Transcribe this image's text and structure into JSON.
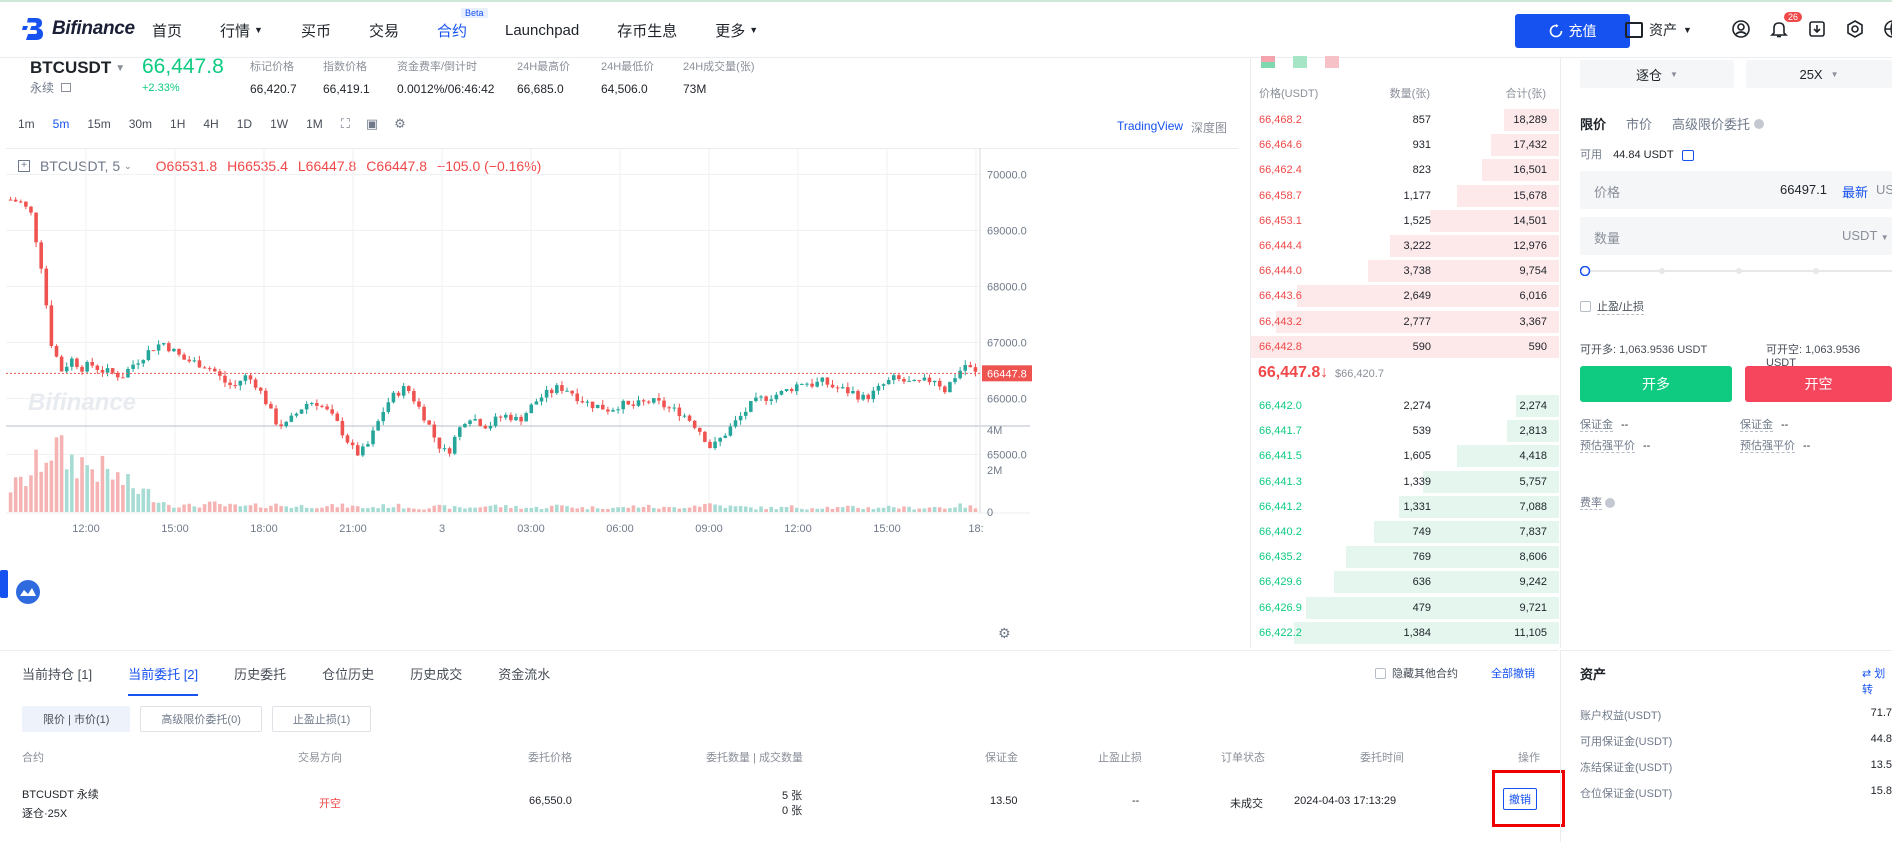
{
  "nav": {
    "brand": "Bifinance",
    "items": [
      {
        "label": "首页",
        "caret": false,
        "active": false
      },
      {
        "label": "行情",
        "caret": true,
        "active": false
      },
      {
        "label": "买币",
        "caret": false,
        "active": false
      },
      {
        "label": "交易",
        "caret": false,
        "active": false
      },
      {
        "label": "合约",
        "caret": false,
        "active": true,
        "badge": "Beta"
      },
      {
        "label": "Launchpad",
        "caret": false,
        "active": false
      },
      {
        "label": "存币生息",
        "caret": false,
        "active": false
      },
      {
        "label": "更多",
        "caret": true,
        "active": false
      }
    ],
    "deposit_label": "充值",
    "assets_label": "资产",
    "notification_count": "26"
  },
  "ticker": {
    "symbol": "BTCUSDT",
    "type": "永续",
    "last_price": "66,447.8",
    "change": "+2.33%",
    "stats": [
      {
        "label": "标记价格",
        "value": "66,420.7"
      },
      {
        "label": "指数价格",
        "value": "66,419.1"
      },
      {
        "label": "资金费率/倒计时",
        "value": "0.0012%/06:46:42"
      },
      {
        "label": "24H最高价",
        "value": "66,685.0"
      },
      {
        "label": "24H最低价",
        "value": "64,506.0"
      },
      {
        "label": "24H成交量(张)",
        "value": "73M"
      }
    ]
  },
  "chart_toolbar": {
    "intervals": [
      "1m",
      "5m",
      "15m",
      "30m",
      "1H",
      "4H",
      "1D",
      "1W",
      "1M"
    ],
    "active_interval": "5m",
    "tradingview": "TradingView",
    "depth": "深度图"
  },
  "chart_data": {
    "type": "candlestick",
    "symbol_label": "BTCUSDT, 5",
    "ohlc": {
      "o": "O66531.8",
      "h": "H66535.4",
      "l": "L66447.8",
      "c": "C66447.8",
      "chg": "−105.0 (−0.16%)"
    },
    "watermark": "Bifinance",
    "y_ticks": [
      "70000.0",
      "69000.0",
      "68000.0",
      "67000.0",
      "66000.0",
      "65000.0"
    ],
    "y_tick_values": [
      70000,
      69000,
      68000,
      67000,
      66000,
      65000
    ],
    "last_price_label": "66447.8",
    "last_price": 66447.8,
    "ylim": [
      64400,
      70400
    ],
    "volume_ticks": [
      "4M",
      "2M",
      "0"
    ],
    "volume_tick_values": [
      4,
      2,
      0
    ],
    "volume_ylim": [
      0,
      4.0
    ],
    "x_ticks": [
      "12:00",
      "15:00",
      "18:00",
      "21:00",
      "3",
      "03:00",
      "06:00",
      "09:00",
      "12:00",
      "15:00",
      "18:"
    ],
    "close_path": [
      69550,
      69500,
      69300,
      68400,
      67000,
      66500,
      66700,
      66550,
      66600,
      66500,
      66450,
      66400,
      66600,
      66750,
      66900,
      67000,
      66850,
      66700,
      66650,
      66600,
      66500,
      66300,
      66200,
      66400,
      66300,
      66000,
      65600,
      65500,
      65700,
      65900,
      65950,
      65800,
      65600,
      65300,
      65000,
      65100,
      65500,
      65900,
      66100,
      66200,
      65900,
      65600,
      65200,
      65000,
      65400,
      65700,
      65600,
      65500,
      65650,
      65700,
      65600,
      65800,
      66000,
      66100,
      66200,
      66150,
      66000,
      65900,
      65850,
      65800,
      65900,
      65850,
      65900,
      65950,
      65900,
      65800,
      65750,
      65600,
      65400,
      65100,
      65300,
      65500,
      65700,
      65900,
      66000,
      66050,
      66100,
      66200,
      66300,
      66250,
      66300,
      66200,
      66150,
      66100,
      66000,
      66100,
      66250,
      66350,
      66300,
      66250,
      66300,
      66350,
      66150,
      66400,
      66600,
      66447.8
    ],
    "volume_path": [
      1.2,
      1.4,
      1.8,
      2.6,
      3.2,
      2.8,
      2.5,
      2.4,
      2.2,
      2.0,
      1.8,
      1.5,
      1.2,
      1.0,
      0.8,
      0.5,
      0.35,
      0.3,
      0.3,
      0.35,
      0.4,
      0.3,
      0.3,
      0.25,
      0.3,
      0.3,
      0.35,
      0.3,
      0.25,
      0.3,
      0.3,
      0.25,
      0.3,
      0.3,
      0.25,
      0.2,
      0.25,
      0.3,
      0.3,
      0.25,
      0.2,
      0.2,
      0.25,
      0.25,
      0.2,
      0.2,
      0.25,
      0.3,
      0.3,
      0.25,
      0.25,
      0.2,
      0.2,
      0.25,
      0.3,
      0.3,
      0.2,
      0.2,
      0.25,
      0.2,
      0.2,
      0.25,
      0.3,
      0.25,
      0.2,
      0.2,
      0.25,
      0.3,
      0.35,
      0.4,
      0.3,
      0.25,
      0.25,
      0.2,
      0.2,
      0.2,
      0.2,
      0.25,
      0.2,
      0.2,
      0.25,
      0.2,
      0.2,
      0.25,
      0.2,
      0.2,
      0.25,
      0.25,
      0.2,
      0.2,
      0.2,
      0.25,
      0.2,
      0.3,
      0.3,
      0.2
    ]
  },
  "orderbook": {
    "headers": {
      "price": "价格(USDT)",
      "qty": "数量(张)",
      "total": "合计(张)"
    },
    "asks": [
      {
        "price": "66,468.2",
        "qty": "857",
        "total": "18,289",
        "depth": 0.18
      },
      {
        "price": "66,464.6",
        "qty": "931",
        "total": "17,432",
        "depth": 0.22
      },
      {
        "price": "66,462.4",
        "qty": "823",
        "total": "16,501",
        "depth": 0.25
      },
      {
        "price": "66,458.7",
        "qty": "1,177",
        "total": "15,678",
        "depth": 0.33
      },
      {
        "price": "66,453.1",
        "qty": "1,525",
        "total": "14,501",
        "depth": 0.42
      },
      {
        "price": "66,444.4",
        "qty": "3,222",
        "total": "12,976",
        "depth": 0.55
      },
      {
        "price": "66,444.0",
        "qty": "3,738",
        "total": "9,754",
        "depth": 0.62
      },
      {
        "price": "66,443.6",
        "qty": "2,649",
        "total": "6,016",
        "depth": 0.85
      },
      {
        "price": "66,443.2",
        "qty": "2,777",
        "total": "3,367",
        "depth": 0.92
      },
      {
        "price": "66,442.8",
        "qty": "590",
        "total": "590",
        "depth": 1.0
      }
    ],
    "mid_price": "66,447.8",
    "mid_mark": "$66,420.7",
    "bids": [
      {
        "price": "66,442.0",
        "qty": "2,274",
        "total": "2,274",
        "depth": 0.14
      },
      {
        "price": "66,441.7",
        "qty": "539",
        "total": "2,813",
        "depth": 0.17
      },
      {
        "price": "66,441.5",
        "qty": "1,605",
        "total": "4,418",
        "depth": 0.33
      },
      {
        "price": "66,441.3",
        "qty": "1,339",
        "total": "5,757",
        "depth": 0.44
      },
      {
        "price": "66,441.2",
        "qty": "1,331",
        "total": "7,088",
        "depth": 0.52
      },
      {
        "price": "66,440.2",
        "qty": "749",
        "total": "7,837",
        "depth": 0.6
      },
      {
        "price": "66,435.2",
        "qty": "769",
        "total": "8,606",
        "depth": 0.69
      },
      {
        "price": "66,429.6",
        "qty": "636",
        "total": "9,242",
        "depth": 0.73
      },
      {
        "price": "66,426.9",
        "qty": "479",
        "total": "9,721",
        "depth": 0.82
      },
      {
        "price": "66,422.2",
        "qty": "1,384",
        "total": "11,105",
        "depth": 0.86
      }
    ]
  },
  "trade_panel": {
    "margin_mode": "逐仓",
    "leverage": "25X",
    "order_types": [
      "限价",
      "市价",
      "高级限价委托"
    ],
    "available_label": "可用",
    "available_value": "44.84 USDT",
    "price_label": "价格",
    "price_value": "66497.1",
    "latest_label": "最新",
    "unit": "USDT",
    "qty_label": "数量",
    "qty_unit": "USDT",
    "tpsl_label": "止盈/止损",
    "can_open_long": "可开多: 1,063.9536 USDT",
    "can_open_short": "可开空: 1,063.9536 USDT",
    "open_long": "开多",
    "open_short": "开空",
    "margin_label": "保证金",
    "margin_value": "--",
    "liq_label": "预估强平价",
    "liq_value": "--",
    "fee_label": "费率"
  },
  "bottom": {
    "tabs": [
      "当前持仓 [1]",
      "当前委托 [2]",
      "历史委托",
      "仓位历史",
      "历史成交",
      "资金流水"
    ],
    "active_tab": 1,
    "hide_other": "隐藏其他合约",
    "cancel_all": "全部撤销",
    "subtabs": [
      "限价 | 市价(1)",
      "高级限价委托(0)",
      "止盈止损(1)"
    ],
    "columns": [
      "合约",
      "交易方向",
      "委托价格",
      "委托数量 | 成交数量",
      "保证金",
      "止盈止损",
      "订单状态",
      "委托时间",
      "操作"
    ],
    "rows": [
      {
        "contract": "BTCUSDT 永续",
        "mode": "逐仓·25X",
        "side": "开空",
        "price": "66,550.0",
        "qty": "5 张",
        "filled": "0 张",
        "margin": "13.50",
        "tpsl": "--",
        "status": "未成交",
        "time": "2024-04-03 17:13:29",
        "action": "撤销"
      }
    ]
  },
  "assets": {
    "title": "资产",
    "transfer": "划转",
    "rows": [
      {
        "label": "账户权益(USDT)",
        "value": "71.7"
      },
      {
        "label": "可用保证金(USDT)",
        "value": "44.8"
      },
      {
        "label": "冻结保证金(USDT)",
        "value": "13.5"
      },
      {
        "label": "仓位保证金(USDT)",
        "value": "15.8"
      }
    ]
  },
  "colors": {
    "accent": "#1652f0",
    "up": "#0ecb81",
    "down": "#f04848"
  }
}
